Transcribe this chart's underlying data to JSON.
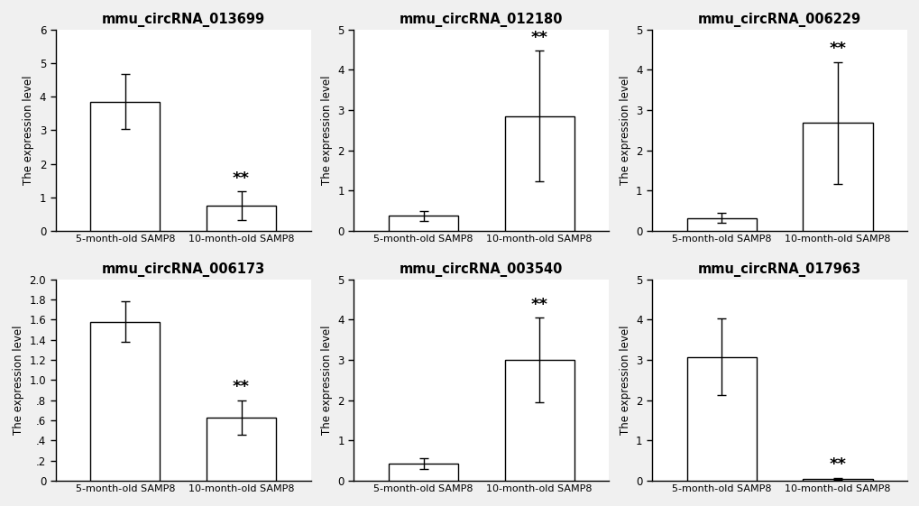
{
  "subplots": [
    {
      "title": "mmu_circRNA_013699",
      "bars": [
        3.85,
        0.75
      ],
      "errors": [
        0.82,
        0.42
      ],
      "ylim": [
        0,
        6
      ],
      "yticks": [
        0,
        1,
        2,
        3,
        4,
        5,
        6
      ],
      "sig_bar_idx": 1,
      "decimal_y": false
    },
    {
      "title": "mmu_circRNA_012180",
      "bars": [
        0.37,
        2.85
      ],
      "errors": [
        0.12,
        1.62
      ],
      "ylim": [
        0,
        5
      ],
      "yticks": [
        0,
        1,
        2,
        3,
        4,
        5
      ],
      "sig_bar_idx": 1,
      "decimal_y": false
    },
    {
      "title": "mmu_circRNA_006229",
      "bars": [
        0.32,
        2.68
      ],
      "errors": [
        0.13,
        1.52
      ],
      "ylim": [
        0,
        5
      ],
      "yticks": [
        0,
        1,
        2,
        3,
        4,
        5
      ],
      "sig_bar_idx": 1,
      "decimal_y": false
    },
    {
      "title": "mmu_circRNA_006173",
      "bars": [
        1.58,
        0.63
      ],
      "errors": [
        0.2,
        0.17
      ],
      "ylim": [
        0,
        2.0
      ],
      "yticks": [
        0.0,
        0.2,
        0.4,
        0.6,
        0.8,
        1.0,
        1.2,
        1.4,
        1.6,
        1.8,
        2.0
      ],
      "sig_bar_idx": 1,
      "decimal_y": true
    },
    {
      "title": "mmu_circRNA_003540",
      "bars": [
        0.43,
        3.0
      ],
      "errors": [
        0.13,
        1.05
      ],
      "ylim": [
        0,
        5
      ],
      "yticks": [
        0,
        1,
        2,
        3,
        4,
        5
      ],
      "sig_bar_idx": 1,
      "decimal_y": false
    },
    {
      "title": "mmu_circRNA_017963",
      "bars": [
        3.08,
        0.05
      ],
      "errors": [
        0.95,
        0.02
      ],
      "ylim": [
        0,
        5
      ],
      "yticks": [
        0,
        1,
        2,
        3,
        4,
        5
      ],
      "sig_bar_idx": 1,
      "decimal_y": false
    }
  ],
  "categories": [
    "5-month-old SAMP8",
    "10-month-old SAMP8"
  ],
  "ylabel": "The expression level",
  "bar_color": "#ffffff",
  "bar_edgecolor": "#000000",
  "bar_width": 0.6,
  "title_fontsize": 10.5,
  "label_fontsize": 8.5,
  "tick_fontsize": 8.5,
  "xtick_fontsize": 8.0,
  "sig_fontsize": 13,
  "background_color": "#ffffff",
  "figure_facecolor": "#f0f0f0"
}
